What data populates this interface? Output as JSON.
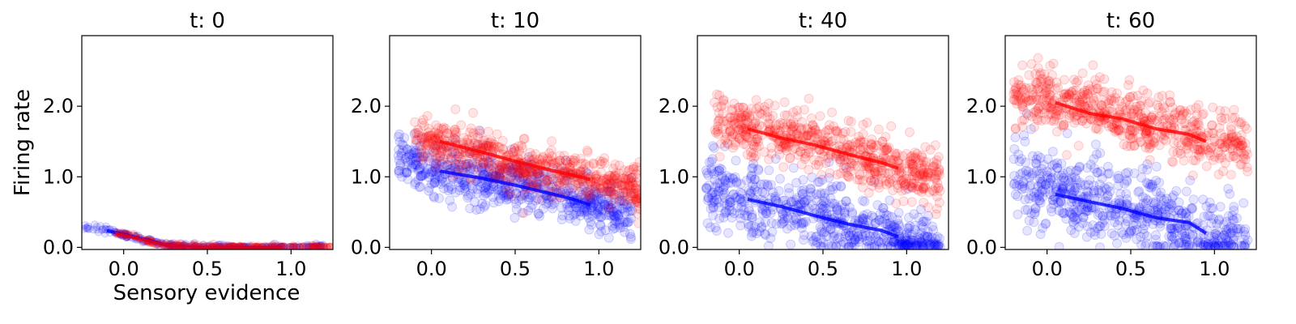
{
  "figure": {
    "xlabel": "Sensory evidence",
    "ylabel": "Firing rate"
  },
  "chart_data": [
    {
      "type": "scatter",
      "title": "t: 0",
      "xlabel": "Sensory evidence",
      "ylabel": "Firing rate",
      "xlim": [
        -0.25,
        1.25
      ],
      "ylim": [
        -0.03,
        3.0
      ],
      "xticks": [
        "0.0",
        "0.5",
        "1.0"
      ],
      "yticks": [
        "0.0",
        "1.0",
        "2.0"
      ],
      "series": [
        {
          "color": "#0000ff",
          "scatter_band": {
            "x": [
              -0.25,
              1.2
            ],
            "mean": [
              [
                -0.25,
                0.3
              ],
              [
                -0.1,
                0.24
              ],
              [
                0.0,
                0.18
              ],
              [
                0.15,
                0.1
              ],
              [
                0.27,
                0.02
              ],
              [
                0.5,
                0.0
              ],
              [
                1.2,
                0.0
              ]
            ],
            "spread": 0.02
          },
          "mean_line": {
            "x": [
              -0.1,
              0.0,
              0.15,
              0.27,
              0.5,
              0.95
            ],
            "y": [
              0.24,
              0.18,
              0.1,
              0.02,
              0.0,
              0.0
            ]
          }
        },
        {
          "color": "#ff0000",
          "scatter_band": {
            "x": [
              -0.05,
              1.25
            ],
            "mean": [
              [
                -0.05,
                0.2
              ],
              [
                0.1,
                0.12
              ],
              [
                0.27,
                0.02
              ],
              [
                0.5,
                0.0
              ],
              [
                1.25,
                0.0
              ]
            ],
            "spread": 0.02
          },
          "mean_line": {
            "x": [
              -0.05,
              0.1,
              0.27,
              0.5,
              0.95
            ],
            "y": [
              0.2,
              0.12,
              0.02,
              0.0,
              0.0
            ]
          }
        }
      ]
    },
    {
      "type": "scatter",
      "title": "t: 10",
      "xlim": [
        -0.25,
        1.25
      ],
      "ylim": [
        -0.03,
        3.0
      ],
      "xticks": [
        "0.0",
        "0.5",
        "1.0"
      ],
      "yticks": [
        "0.0",
        "1.0",
        "2.0"
      ],
      "series": [
        {
          "color": "#0000ff",
          "scatter_band": {
            "x": [
              -0.2,
              1.2
            ],
            "mean": [
              [
                -0.2,
                1.25
              ],
              [
                0.0,
                1.1
              ],
              [
                0.5,
                0.9
              ],
              [
                0.95,
                0.6
              ],
              [
                1.2,
                0.45
              ]
            ],
            "spread": 0.18
          },
          "mean_line": {
            "x": [
              0.05,
              0.3,
              0.5,
              0.7,
              0.85,
              0.95
            ],
            "y": [
              1.08,
              0.98,
              0.88,
              0.77,
              0.68,
              0.6
            ]
          }
        },
        {
          "color": "#ff0000",
          "scatter_band": {
            "x": [
              -0.1,
              1.25
            ],
            "mean": [
              [
                -0.1,
                1.6
              ],
              [
                0.0,
                1.5
              ],
              [
                0.5,
                1.2
              ],
              [
                1.0,
                0.95
              ],
              [
                1.25,
                0.8
              ]
            ],
            "spread": 0.16
          },
          "mean_line": {
            "x": [
              0.05,
              0.3,
              0.5,
              0.7,
              0.85,
              0.95
            ],
            "y": [
              1.5,
              1.35,
              1.22,
              1.1,
              1.02,
              0.96
            ]
          }
        }
      ]
    },
    {
      "type": "scatter",
      "title": "t: 40",
      "xlim": [
        -0.25,
        1.25
      ],
      "ylim": [
        -0.03,
        3.0
      ],
      "xticks": [
        "0.0",
        "0.5",
        "1.0"
      ],
      "yticks": [
        "0.0",
        "1.0",
        "2.0"
      ],
      "series": [
        {
          "color": "#0000ff",
          "scatter_band": {
            "x": [
              -0.2,
              1.2
            ],
            "mean": [
              [
                -0.2,
                0.85
              ],
              [
                0.0,
                0.7
              ],
              [
                0.5,
                0.45
              ],
              [
                0.95,
                0.15
              ],
              [
                1.2,
                0.0
              ]
            ],
            "spread": 0.25
          },
          "mean_line": {
            "x": [
              0.05,
              0.25,
              0.45,
              0.65,
              0.85,
              0.95
            ],
            "y": [
              0.68,
              0.58,
              0.45,
              0.33,
              0.24,
              0.15
            ]
          }
        },
        {
          "color": "#ff0000",
          "scatter_band": {
            "x": [
              -0.15,
              1.2
            ],
            "mean": [
              [
                -0.15,
                1.8
              ],
              [
                0.0,
                1.7
              ],
              [
                0.5,
                1.45
              ],
              [
                1.0,
                1.1
              ],
              [
                1.2,
                1.0
              ]
            ],
            "spread": 0.2
          },
          "mean_line": {
            "x": [
              0.05,
              0.25,
              0.45,
              0.65,
              0.85,
              0.95
            ],
            "y": [
              1.68,
              1.55,
              1.45,
              1.32,
              1.2,
              1.12
            ]
          }
        }
      ]
    },
    {
      "type": "scatter",
      "title": "t: 60",
      "xlim": [
        -0.25,
        1.25
      ],
      "ylim": [
        -0.03,
        3.0
      ],
      "xticks": [
        "0.0",
        "0.5",
        "1.0"
      ],
      "yticks": [
        "0.0",
        "1.0",
        "2.0"
      ],
      "series": [
        {
          "color": "#0000ff",
          "scatter_band": {
            "x": [
              -0.2,
              1.2
            ],
            "mean": [
              [
                -0.2,
                0.95
              ],
              [
                0.0,
                0.8
              ],
              [
                0.5,
                0.55
              ],
              [
                0.95,
                0.2
              ],
              [
                1.2,
                0.05
              ]
            ],
            "spread": 0.3
          },
          "mean_line": {
            "x": [
              0.05,
              0.25,
              0.45,
              0.65,
              0.85,
              0.95
            ],
            "y": [
              0.75,
              0.65,
              0.55,
              0.42,
              0.35,
              0.2
            ]
          }
        },
        {
          "color": "#ff0000",
          "scatter_band": {
            "x": [
              -0.2,
              1.2
            ],
            "mean": [
              [
                -0.2,
                2.2
              ],
              [
                0.0,
                2.1
              ],
              [
                0.5,
                1.8
              ],
              [
                1.0,
                1.5
              ],
              [
                1.2,
                1.45
              ]
            ],
            "spread": 0.22
          },
          "mean_line": {
            "x": [
              0.05,
              0.25,
              0.45,
              0.65,
              0.85,
              0.95
            ],
            "y": [
              2.05,
              1.9,
              1.82,
              1.68,
              1.6,
              1.5
            ]
          }
        }
      ]
    }
  ]
}
